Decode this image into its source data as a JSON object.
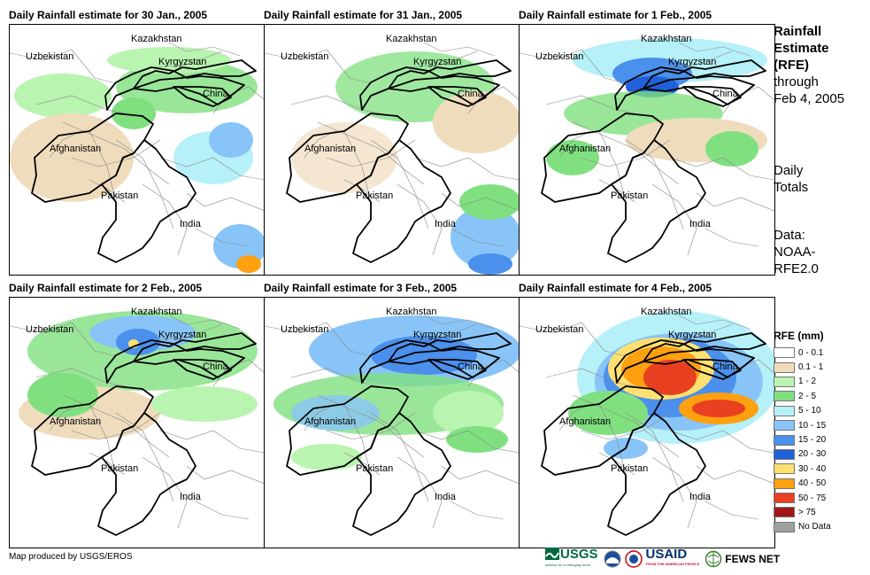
{
  "panels": [
    {
      "title": "Daily Rainfall estimate for 30 Jan., 2005"
    },
    {
      "title": "Daily Rainfall estimate for 31 Jan., 2005"
    },
    {
      "title": "Daily Rainfall estimate for 1 Feb., 2005"
    },
    {
      "title": "Daily Rainfall estimate for 2 Feb., 2005"
    },
    {
      "title": "Daily Rainfall estimate for 3 Feb., 2005"
    },
    {
      "title": "Daily Rainfall estimate for 4 Feb., 2005"
    }
  ],
  "map_labels": {
    "kazakhstan": "Kazakhstan",
    "uzbekistan": "Uzbekistan",
    "kyrgyzstan": "Kyrgyzstan",
    "china": "China",
    "afghanistan": "Afghanistan",
    "pakistan": "Pakistan",
    "india": "India"
  },
  "side": {
    "title_line1": "Rainfall",
    "title_line2": "Estimate",
    "title_line3": "(RFE)",
    "title_line4": "through",
    "title_line5": "Feb 4, 2005",
    "daily_line1": "Daily",
    "daily_line2": "Totals",
    "data_line1": "Data:",
    "data_line2": "NOAA-",
    "data_line3": "RFE2.0"
  },
  "legend": {
    "title": "RFE (mm)",
    "items": [
      {
        "label": "0 - 0.1",
        "color": "#ffffff"
      },
      {
        "label": "0.1 - 1",
        "color": "#efdcbc"
      },
      {
        "label": "1 - 2",
        "color": "#b9f4b0"
      },
      {
        "label": "2 - 5",
        "color": "#80e080"
      },
      {
        "label": "5 - 10",
        "color": "#b6f0f8"
      },
      {
        "label": "10 - 15",
        "color": "#88c4f8"
      },
      {
        "label": "15 - 20",
        "color": "#4a90ec"
      },
      {
        "label": "20 - 30",
        "color": "#2060d8"
      },
      {
        "label": "30 - 40",
        "color": "#ffe070"
      },
      {
        "label": "40 - 50",
        "color": "#ffa010"
      },
      {
        "label": "50 - 75",
        "color": "#e84020"
      },
      {
        "label": "> 75",
        "color": "#a01818"
      },
      {
        "label": "No Data",
        "color": "#a0a0a0"
      }
    ]
  },
  "credit": "Map produced by USGS/EROS",
  "logos": {
    "usgs": "USGS",
    "usgs_tagline": "science for a changing world",
    "usaid": "USAID",
    "usaid_tagline": "FROM THE AMERICAN PEOPLE",
    "fews": "FEWS NET"
  }
}
